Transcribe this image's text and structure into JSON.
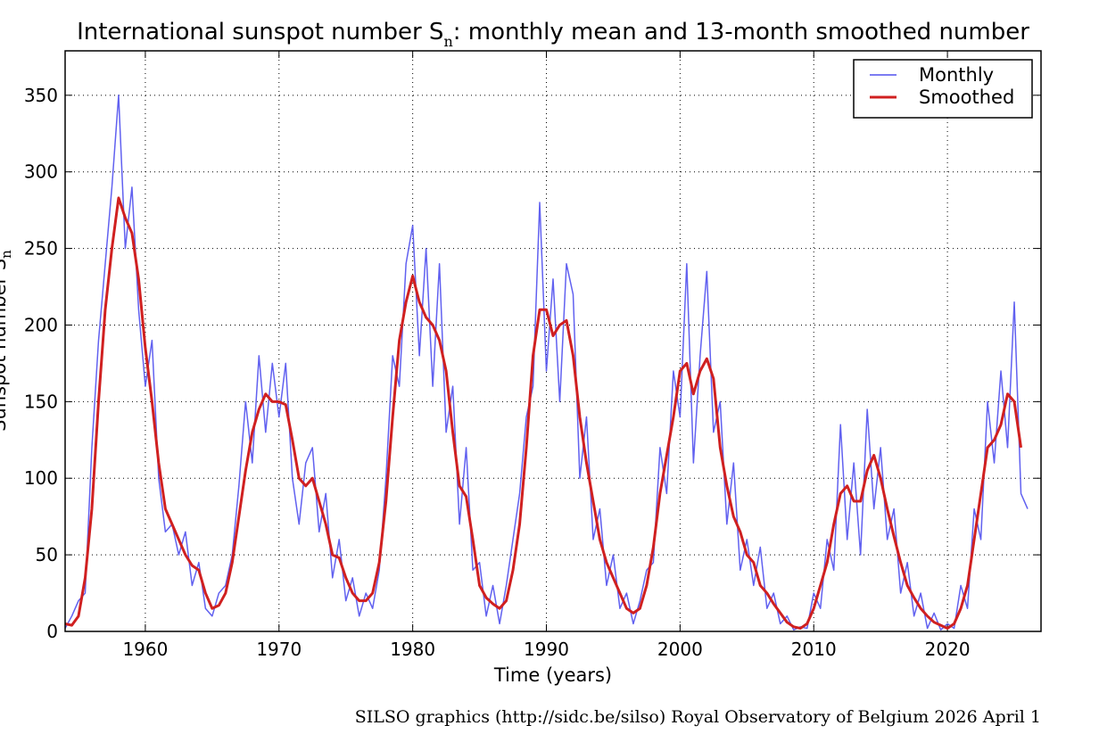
{
  "chart_data": {
    "type": "line",
    "title": [
      "International sunspot number S",
      "n",
      ": monthly mean and 13-month smoothed number"
    ],
    "ylabel": [
      "Sunspot number S",
      "n"
    ],
    "xlabel": "Time (years)",
    "footer": "SILSO graphics (http://sidc.be/silso)  Royal Observatory of Belgium  2026 April 1",
    "x": [
      1954.0,
      1954.5,
      1955.0,
      1955.5,
      1956.0,
      1956.5,
      1957.0,
      1957.5,
      1958.0,
      1958.5,
      1959.0,
      1959.5,
      1960.0,
      1960.5,
      1961.0,
      1961.5,
      1962.0,
      1962.5,
      1963.0,
      1963.5,
      1964.0,
      1964.5,
      1965.0,
      1965.5,
      1966.0,
      1966.5,
      1967.0,
      1967.5,
      1968.0,
      1968.5,
      1969.0,
      1969.5,
      1970.0,
      1970.5,
      1971.0,
      1971.5,
      1972.0,
      1972.5,
      1973.0,
      1973.5,
      1974.0,
      1974.5,
      1975.0,
      1975.5,
      1976.0,
      1976.5,
      1977.0,
      1977.5,
      1978.0,
      1978.5,
      1979.0,
      1979.5,
      1980.0,
      1980.5,
      1981.0,
      1981.5,
      1982.0,
      1982.5,
      1983.0,
      1983.5,
      1984.0,
      1984.5,
      1985.0,
      1985.5,
      1986.0,
      1986.5,
      1987.0,
      1987.5,
      1988.0,
      1988.5,
      1989.0,
      1989.5,
      1990.0,
      1990.5,
      1991.0,
      1991.5,
      1992.0,
      1992.5,
      1993.0,
      1993.5,
      1994.0,
      1994.5,
      1995.0,
      1995.5,
      1996.0,
      1996.5,
      1997.0,
      1997.5,
      1998.0,
      1998.5,
      1999.0,
      1999.5,
      2000.0,
      2000.5,
      2001.0,
      2001.5,
      2002.0,
      2002.5,
      2003.0,
      2003.5,
      2004.0,
      2004.5,
      2005.0,
      2005.5,
      2006.0,
      2006.5,
      2007.0,
      2007.5,
      2008.0,
      2008.5,
      2009.0,
      2009.5,
      2010.0,
      2010.5,
      2011.0,
      2011.5,
      2012.0,
      2012.5,
      2013.0,
      2013.5,
      2014.0,
      2014.5,
      2015.0,
      2015.5,
      2016.0,
      2016.5,
      2017.0,
      2017.5,
      2018.0,
      2018.5,
      2019.0,
      2019.5,
      2020.0,
      2020.5,
      2021.0,
      2021.5,
      2022.0,
      2022.5,
      2023.0,
      2023.5,
      2024.0,
      2024.5,
      2025.0,
      2025.5,
      2026.0
    ],
    "series": [
      {
        "name": "Monthly",
        "color": "#5050ee",
        "width": 1.5,
        "values": [
          2,
          10,
          20,
          25,
          120,
          190,
          240,
          290,
          350,
          250,
          290,
          210,
          160,
          190,
          100,
          65,
          70,
          50,
          65,
          30,
          45,
          15,
          10,
          25,
          30,
          50,
          95,
          150,
          110,
          180,
          130,
          175,
          140,
          175,
          100,
          70,
          110,
          120,
          65,
          90,
          35,
          60,
          20,
          35,
          10,
          25,
          15,
          40,
          100,
          180,
          160,
          240,
          265,
          180,
          250,
          160,
          240,
          130,
          160,
          70,
          120,
          40,
          45,
          10,
          30,
          5,
          30,
          60,
          90,
          140,
          160,
          280,
          170,
          230,
          150,
          240,
          220,
          100,
          140,
          60,
          80,
          30,
          50,
          15,
          25,
          5,
          20,
          40,
          45,
          120,
          90,
          170,
          140,
          240,
          110,
          180,
          235,
          130,
          150,
          70,
          110,
          40,
          60,
          30,
          55,
          15,
          25,
          5,
          10,
          1,
          3,
          2,
          25,
          15,
          60,
          40,
          135,
          60,
          110,
          50,
          145,
          80,
          120,
          60,
          80,
          25,
          45,
          10,
          25,
          2,
          12,
          1,
          5,
          2,
          30,
          15,
          80,
          60,
          150,
          110,
          170,
          120,
          215,
          90,
          80
        ]
      },
      {
        "name": "Smoothed",
        "color": "#d02020",
        "width": 3,
        "values": [
          5,
          4,
          10,
          35,
          80,
          150,
          210,
          250,
          283,
          270,
          260,
          230,
          185,
          150,
          110,
          80,
          70,
          60,
          50,
          43,
          40,
          25,
          15,
          17,
          25,
          45,
          75,
          105,
          130,
          145,
          155,
          150,
          150,
          148,
          125,
          100,
          95,
          100,
          85,
          70,
          50,
          48,
          35,
          25,
          20,
          20,
          25,
          45,
          85,
          140,
          190,
          215,
          232,
          215,
          205,
          200,
          190,
          170,
          130,
          95,
          88,
          60,
          30,
          22,
          18,
          15,
          20,
          40,
          70,
          120,
          180,
          210,
          210,
          193,
          200,
          203,
          180,
          140,
          110,
          85,
          60,
          45,
          35,
          25,
          15,
          12,
          15,
          30,
          55,
          90,
          115,
          140,
          170,
          175,
          155,
          170,
          178,
          165,
          120,
          95,
          75,
          65,
          50,
          45,
          30,
          25,
          18,
          12,
          6,
          3,
          2,
          5,
          15,
          30,
          45,
          70,
          90,
          95,
          85,
          85,
          105,
          115,
          100,
          80,
          62,
          45,
          30,
          22,
          15,
          10,
          6,
          4,
          2,
          5,
          15,
          30,
          60,
          90,
          120,
          125,
          135,
          155,
          150,
          120,
          null
        ]
      }
    ],
    "xlim": [
      1954,
      2027
    ],
    "xticks": [
      1960,
      1970,
      1980,
      1990,
      2000,
      2010,
      2020
    ],
    "ylim": [
      0,
      379
    ],
    "yticks": [
      0,
      50,
      100,
      150,
      200,
      250,
      300,
      350
    ],
    "grid": true,
    "legend": "upper right"
  }
}
